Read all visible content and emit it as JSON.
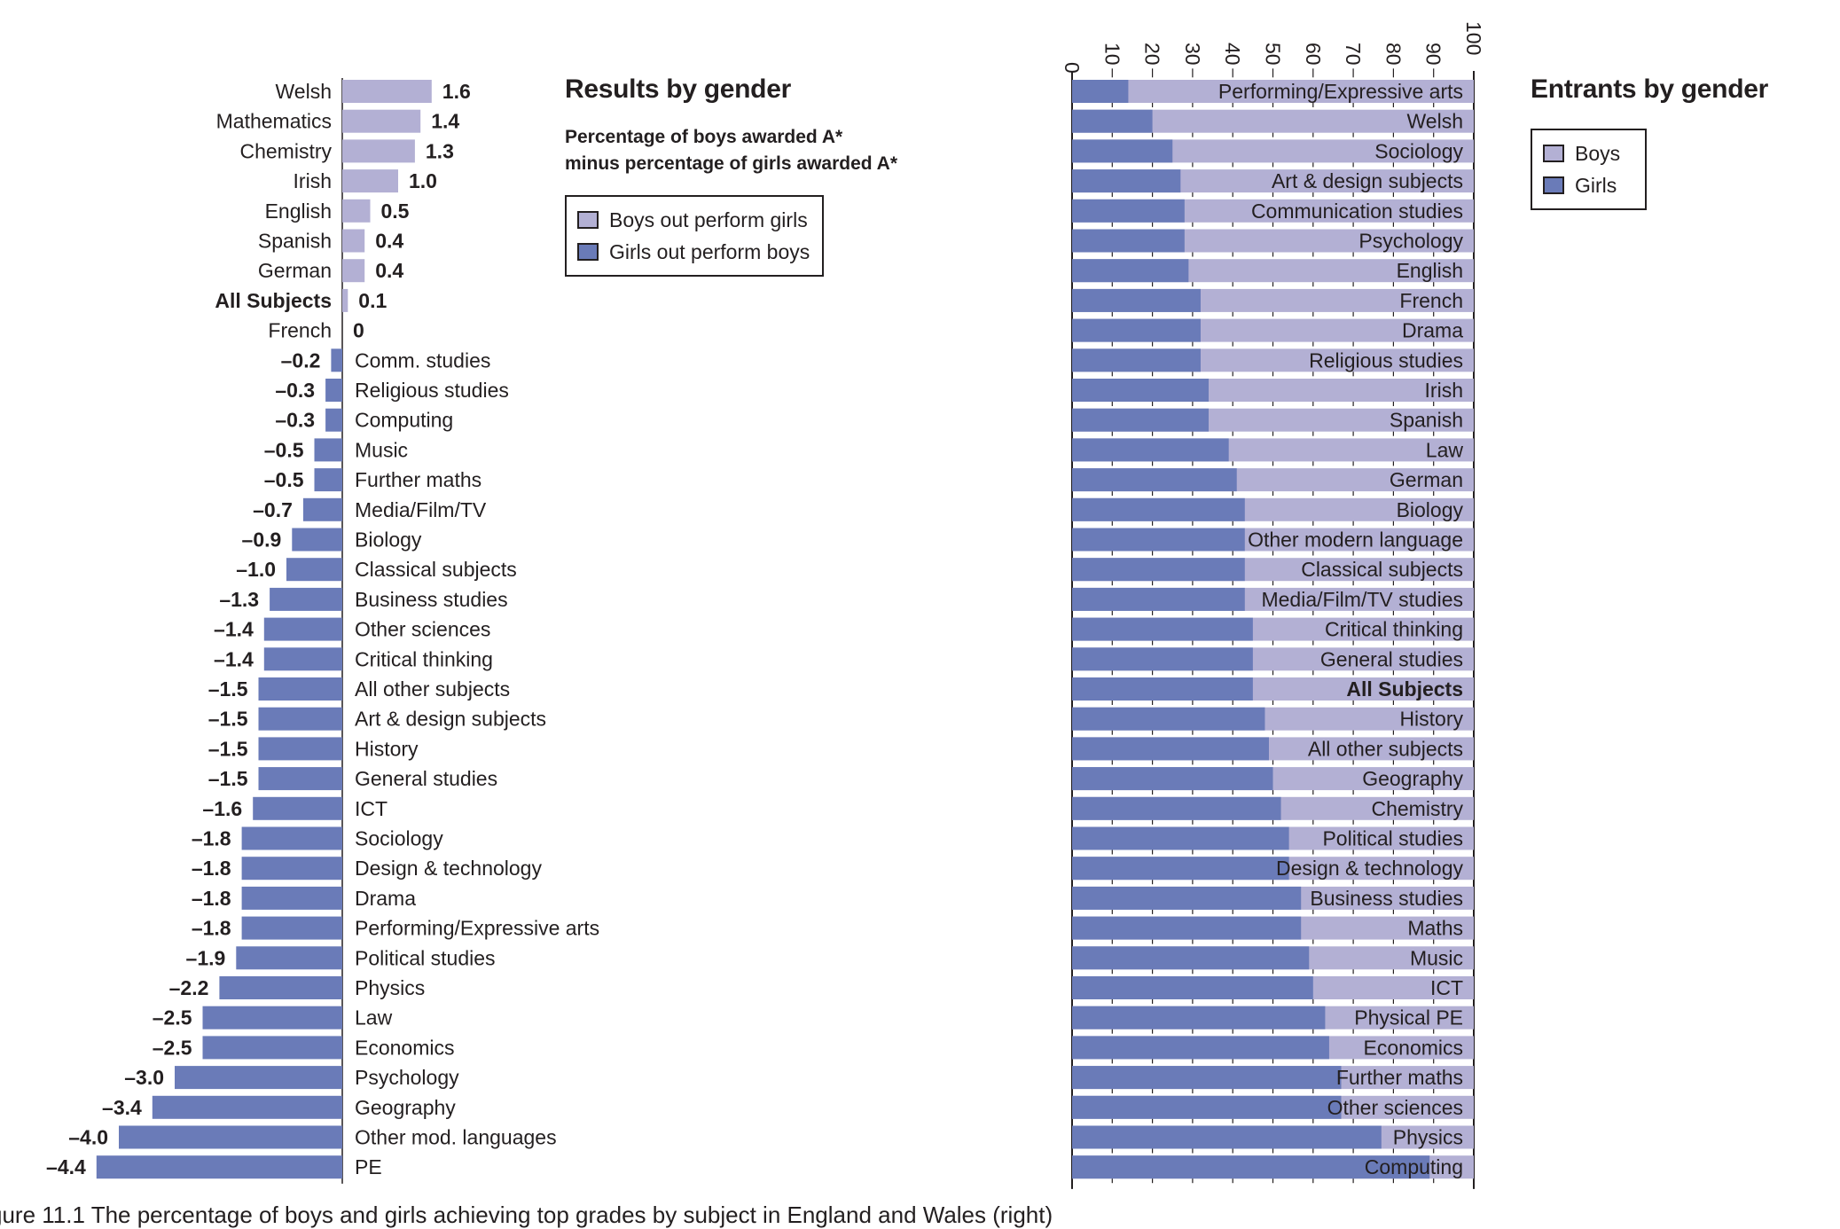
{
  "colors": {
    "boys": "#b3b0d4",
    "girls": "#6a7bb8",
    "text": "#231f20",
    "axis": "#231f20"
  },
  "left_panel": {
    "title": "Results by gender",
    "subtitle_line1": "Percentage of boys awarded A*",
    "subtitle_line2": "minus percentage of girls awarded A*",
    "legend": [
      {
        "label": "Boys out perform girls",
        "color_key": "boys"
      },
      {
        "label": "Girls out perform boys",
        "color_key": "girls"
      }
    ]
  },
  "right_panel": {
    "title": "Entrants by gender",
    "legend": [
      {
        "label": "Boys",
        "color_key": "boys"
      },
      {
        "label": "Girls",
        "color_key": "girls"
      }
    ]
  },
  "caption": "gure 11.1 The percentage of boys and girls achieving top grades by subject in England and Wales (right)",
  "chart_data": [
    {
      "type": "bar",
      "orientation": "horizontal",
      "title": "Results by gender",
      "subtitle": "Percentage of boys awarded A* minus percentage of girls awarded A*",
      "xlabel": "",
      "ylabel": "",
      "xlim": [
        -4.4,
        1.6
      ],
      "grid": false,
      "legend_position": "top-right",
      "categories": [
        "Welsh",
        "Mathematics",
        "Chemistry",
        "Irish",
        "English",
        "Spanish",
        "German",
        "All Subjects",
        "French",
        "Comm. studies",
        "Religious studies",
        "Computing",
        "Music",
        "Further maths",
        "Media/Film/TV",
        "Biology",
        "Classical subjects",
        "Business studies",
        "Other sciences",
        "Critical thinking",
        "All other subjects",
        "Art & design subjects",
        "History",
        "General studies",
        "ICT",
        "Sociology",
        "Design & technology",
        "Drama",
        "Performing/Expressive arts",
        "Political studies",
        "Physics",
        "Law",
        "Economics",
        "Psychology",
        "Geography",
        "Other mod. languages",
        "PE"
      ],
      "values": [
        1.6,
        1.4,
        1.3,
        1.0,
        0.5,
        0.4,
        0.4,
        0.1,
        0,
        -0.2,
        -0.3,
        -0.3,
        -0.5,
        -0.5,
        -0.7,
        -0.9,
        -1.0,
        -1.3,
        -1.4,
        -1.4,
        -1.5,
        -1.5,
        -1.5,
        -1.5,
        -1.6,
        -1.8,
        -1.8,
        -1.8,
        -1.8,
        -1.9,
        -2.2,
        -2.5,
        -2.5,
        -3.0,
        -3.4,
        -4.0,
        -4.4
      ],
      "value_labels": [
        "1.6",
        "1.4",
        "1.3",
        "1.0",
        "0.5",
        "0.4",
        "0.4",
        "0.1",
        "0",
        "–0.2",
        "–0.3",
        "–0.3",
        "–0.5",
        "–0.5",
        "–0.7",
        "–0.9",
        "–1.0",
        "–1.3",
        "–1.4",
        "–1.4",
        "–1.5",
        "–1.5",
        "–1.5",
        "–1.5",
        "–1.6",
        "–1.8",
        "–1.8",
        "–1.8",
        "–1.8",
        "–1.9",
        "–2.2",
        "–2.5",
        "–2.5",
        "–3.0",
        "–3.4",
        "–4.0",
        "–4.4"
      ],
      "bold_categories": [
        "All Subjects"
      ],
      "series_legend": [
        "Boys out perform girls",
        "Girls out perform boys"
      ]
    },
    {
      "type": "bar",
      "orientation": "horizontal",
      "stacked": true,
      "title": "Entrants by gender",
      "xlabel": "",
      "ylabel": "",
      "xlim": [
        0,
        100
      ],
      "xticks": [
        0,
        10,
        20,
        30,
        40,
        50,
        60,
        70,
        80,
        90,
        100
      ],
      "grid": false,
      "legend_position": "top-right",
      "categories": [
        "Performing/Expressive arts",
        "Welsh",
        "Sociology",
        "Art & design subjects",
        "Communication studies",
        "Psychology",
        "English",
        "French",
        "Drama",
        "Religious studies",
        "Irish",
        "Spanish",
        "Law",
        "German",
        "Biology",
        "Other modern language",
        "Classical subjects",
        "Media/Film/TV studies",
        "Critical thinking",
        "General studies",
        "All Subjects",
        "History",
        "All other subjects",
        "Geography",
        "Chemistry",
        "Political studies",
        "Design & technology",
        "Business studies",
        "Maths",
        "Music",
        "ICT",
        "Physical PE",
        "Economics",
        "Further maths",
        "Other sciences",
        "Physics",
        "Computing"
      ],
      "bold_categories": [
        "All Subjects"
      ],
      "series": [
        {
          "name": "Girls",
          "values": [
            14,
            20,
            25,
            27,
            28,
            28,
            29,
            32,
            32,
            32,
            34,
            34,
            39,
            41,
            43,
            43,
            43,
            43,
            45,
            45,
            45,
            48,
            49,
            50,
            52,
            54,
            54,
            57,
            57,
            59,
            60,
            63,
            64,
            67,
            67,
            77,
            89
          ]
        },
        {
          "name": "Boys",
          "values": [
            86,
            80,
            75,
            73,
            72,
            72,
            71,
            68,
            68,
            68,
            66,
            66,
            61,
            59,
            57,
            57,
            57,
            57,
            55,
            55,
            55,
            52,
            51,
            50,
            48,
            46,
            46,
            43,
            43,
            41,
            40,
            37,
            36,
            33,
            33,
            23,
            11
          ]
        }
      ]
    }
  ]
}
